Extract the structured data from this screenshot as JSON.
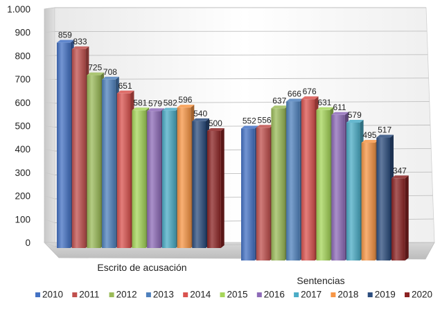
{
  "chart_data": {
    "type": "bar",
    "categories": [
      "Escrito de acusación",
      "Sentencias"
    ],
    "series": [
      {
        "name": "2010",
        "values": [
          859,
          552
        ],
        "color": "#4472c4"
      },
      {
        "name": "2011",
        "values": [
          833,
          556
        ],
        "color": "#c0504d"
      },
      {
        "name": "2012",
        "values": [
          725,
          637
        ],
        "color": "#9bbb59"
      },
      {
        "name": "2013",
        "values": [
          708,
          666
        ],
        "color": "#4f81bd"
      },
      {
        "name": "2014",
        "values": [
          651,
          676
        ],
        "color": "#d9534f"
      },
      {
        "name": "2015",
        "values": [
          581,
          631
        ],
        "color": "#a6d65a"
      },
      {
        "name": "2016",
        "values": [
          579,
          611
        ],
        "color": "#8e6bb8"
      },
      {
        "name": "2017",
        "values": [
          582,
          579
        ],
        "color": "#4bacc6"
      },
      {
        "name": "2018",
        "values": [
          596,
          495
        ],
        "color": "#f79646"
      },
      {
        "name": "2019",
        "values": [
          540,
          517
        ],
        "color": "#2c4d7e"
      },
      {
        "name": "2020",
        "values": [
          500,
          347
        ],
        "color": "#8b2323"
      }
    ],
    "ylim": [
      0,
      1000
    ],
    "yticks": [
      0,
      100,
      200,
      300,
      400,
      500,
      600,
      700,
      800,
      900,
      1000
    ],
    "ytick_labels": [
      "0",
      "100",
      "200",
      "300",
      "400",
      "500",
      "600",
      "700",
      "800",
      "900",
      "1.000"
    ],
    "legend_position": "bottom",
    "grid": true
  }
}
